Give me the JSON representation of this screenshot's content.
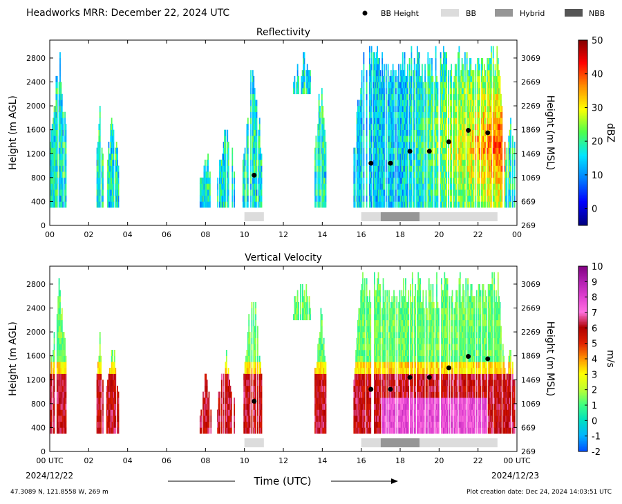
{
  "header": {
    "title": "Headworks MRR:  December 22, 2024 UTC",
    "legend": [
      {
        "label": "BB Height",
        "kind": "dot",
        "color": "#000000"
      },
      {
        "label": "BB",
        "kind": "box",
        "color": "#dcdcdc"
      },
      {
        "label": "Hybrid",
        "kind": "box",
        "color": "#969696"
      },
      {
        "label": "NBB",
        "kind": "box",
        "color": "#555555"
      }
    ]
  },
  "footer": {
    "location": "47.3089 N, 121.8558 W, 269 m",
    "creation": "Plot creation date: Dec 24, 2024 14:03:51 UTC",
    "xlabel": "Time (UTC)",
    "start_date": "2024/12/22",
    "end_date": "2024/12/23"
  },
  "chart_data": [
    {
      "type": "heatmap",
      "title": "Reflectivity",
      "ylabel": "Height (m AGL)",
      "ylabel_right": "Height (m MSL)",
      "xlim": [
        0,
        24
      ],
      "ylim": [
        0,
        3100
      ],
      "x_ticks": [
        "00",
        "02",
        "04",
        "06",
        "08",
        "10",
        "12",
        "14",
        "16",
        "18",
        "20",
        "22",
        "00"
      ],
      "y_ticks": [
        0,
        400,
        800,
        1200,
        1600,
        2000,
        2400,
        2800
      ],
      "y_ticks_right": [
        269,
        669,
        1069,
        1469,
        1869,
        2269,
        2669,
        3069
      ],
      "colorbar": {
        "label": "dBZ",
        "min": -5,
        "max": 50,
        "ticks": [
          0,
          10,
          20,
          30,
          40,
          50
        ],
        "colors": [
          "#00007f",
          "#0000ff",
          "#0080ff",
          "#00e5ff",
          "#4cff4c",
          "#ffff00",
          "#ff8c00",
          "#ff0000",
          "#7f0000"
        ]
      },
      "bb_height": [
        {
          "x": 10.5,
          "y": 840
        },
        {
          "x": 16.5,
          "y": 1040
        },
        {
          "x": 17.5,
          "y": 1040
        },
        {
          "x": 18.5,
          "y": 1240
        },
        {
          "x": 19.5,
          "y": 1240
        },
        {
          "x": 20.5,
          "y": 1400
        },
        {
          "x": 21.5,
          "y": 1590
        },
        {
          "x": 22.5,
          "y": 1550
        }
      ],
      "bb_type_bar": [
        {
          "start": 10,
          "end": 11,
          "type": "BB"
        },
        {
          "start": 16,
          "end": 17,
          "type": "BB"
        },
        {
          "start": 17,
          "end": 19,
          "type": "Hybrid"
        },
        {
          "start": 19,
          "end": 23,
          "type": "BB"
        }
      ]
    },
    {
      "type": "heatmap",
      "title": "Vertical Velocity",
      "ylabel": "Height (m AGL)",
      "ylabel_right": "Height (m MSL)",
      "xlim": [
        0,
        24
      ],
      "ylim": [
        0,
        3100
      ],
      "x_ticks": [
        "00 UTC",
        "02",
        "04",
        "06",
        "08",
        "10",
        "12",
        "14",
        "16",
        "18",
        "20",
        "22",
        "00 UTC"
      ],
      "y_ticks": [
        0,
        400,
        800,
        1200,
        1600,
        2000,
        2400,
        2800
      ],
      "y_ticks_right": [
        269,
        669,
        1069,
        1469,
        1869,
        2269,
        2669,
        3069
      ],
      "colorbar": {
        "label": "m/s",
        "min": -2,
        "max": 10,
        "ticks": [
          -2,
          -1,
          0,
          1,
          2,
          3,
          4,
          5,
          6,
          7,
          8,
          9,
          10
        ],
        "colors": [
          "#0050ff",
          "#00b4ff",
          "#00e0c0",
          "#40ff80",
          "#c0ff30",
          "#ffff00",
          "#ff9000",
          "#e02000",
          "#b00000",
          "#ff70e0",
          "#e040d0",
          "#b020b0",
          "#800080"
        ]
      },
      "bb_height": [
        {
          "x": 10.5,
          "y": 840
        },
        {
          "x": 16.5,
          "y": 1040
        },
        {
          "x": 17.5,
          "y": 1040
        },
        {
          "x": 18.5,
          "y": 1240
        },
        {
          "x": 19.5,
          "y": 1240
        },
        {
          "x": 20.5,
          "y": 1400
        },
        {
          "x": 21.5,
          "y": 1590
        },
        {
          "x": 22.5,
          "y": 1550
        }
      ],
      "bb_type_bar": [
        {
          "start": 10,
          "end": 11,
          "type": "BB"
        },
        {
          "start": 16,
          "end": 17,
          "type": "BB"
        },
        {
          "start": 17,
          "end": 19,
          "type": "Hybrid"
        },
        {
          "start": 19,
          "end": 23,
          "type": "BB"
        }
      ]
    }
  ]
}
